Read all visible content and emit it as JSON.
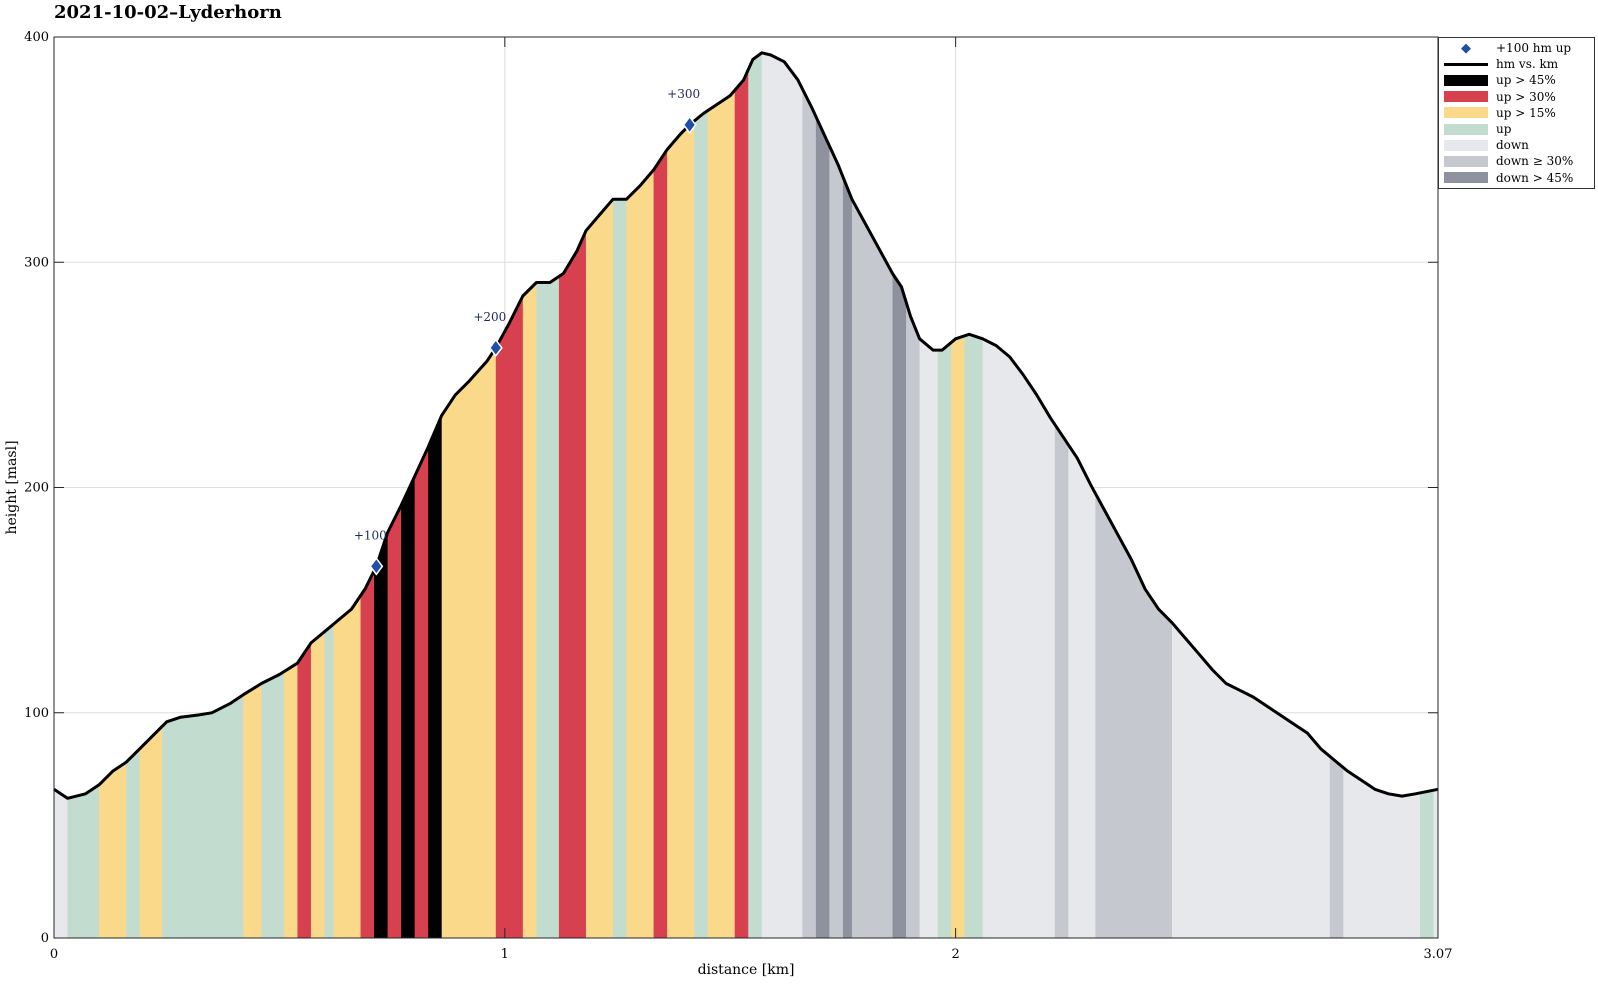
{
  "title": "2021-10-02–Lyderhorn",
  "chart_data": {
    "type": "area",
    "title": "2021-10-02–Lyderhorn",
    "xlabel": "distance [km]",
    "ylabel": "height [masl]",
    "xlim": [
      0,
      3.07
    ],
    "ylim": [
      0,
      400
    ],
    "xticks": [
      {
        "value": 0,
        "label": "0"
      },
      {
        "value": 1,
        "label": "1"
      },
      {
        "value": 2,
        "label": "2"
      },
      {
        "value": 3.07,
        "label": "3.07"
      }
    ],
    "yticks": [
      {
        "value": 0,
        "label": "0"
      },
      {
        "value": 100,
        "label": "100"
      },
      {
        "value": 200,
        "label": "200"
      },
      {
        "value": 300,
        "label": "300"
      },
      {
        "value": 400,
        "label": "400"
      }
    ],
    "grid": true,
    "legend_position": "outside-top-right",
    "categories": {
      "up45": {
        "label": "up > 45%",
        "color": "#000000"
      },
      "up30": {
        "label": "up > 30%",
        "color": "#d7404f"
      },
      "up15": {
        "label": "up > 15%",
        "color": "#fbd98a"
      },
      "up": {
        "label": "up",
        "color": "#c2ddd0"
      },
      "down": {
        "label": "down",
        "color": "#e7e8ec"
      },
      "down30": {
        "label": "down ≥ 30%",
        "color": "#c6c8d0"
      },
      "down45": {
        "label": "down > 45%",
        "color": "#8e919e"
      }
    },
    "profile": [
      [
        0.0,
        66
      ],
      [
        0.03,
        62
      ],
      [
        0.07,
        64
      ],
      [
        0.1,
        68
      ],
      [
        0.13,
        74
      ],
      [
        0.16,
        78
      ],
      [
        0.19,
        84
      ],
      [
        0.22,
        90
      ],
      [
        0.25,
        96
      ],
      [
        0.28,
        98
      ],
      [
        0.32,
        99
      ],
      [
        0.35,
        100
      ],
      [
        0.39,
        104
      ],
      [
        0.42,
        108
      ],
      [
        0.46,
        113
      ],
      [
        0.5,
        117
      ],
      [
        0.54,
        122
      ],
      [
        0.57,
        131
      ],
      [
        0.6,
        136
      ],
      [
        0.63,
        141
      ],
      [
        0.66,
        146
      ],
      [
        0.69,
        155
      ],
      [
        0.715,
        165
      ],
      [
        0.74,
        180
      ],
      [
        0.77,
        192
      ],
      [
        0.8,
        205
      ],
      [
        0.83,
        218
      ],
      [
        0.86,
        232
      ],
      [
        0.89,
        241
      ],
      [
        0.92,
        247
      ],
      [
        0.96,
        256
      ],
      [
        0.98,
        262
      ],
      [
        1.01,
        273
      ],
      [
        1.04,
        285
      ],
      [
        1.07,
        291
      ],
      [
        1.1,
        291
      ],
      [
        1.13,
        295
      ],
      [
        1.16,
        305
      ],
      [
        1.18,
        314
      ],
      [
        1.21,
        321
      ],
      [
        1.24,
        328
      ],
      [
        1.27,
        328
      ],
      [
        1.3,
        334
      ],
      [
        1.33,
        341
      ],
      [
        1.36,
        350
      ],
      [
        1.39,
        357
      ],
      [
        1.41,
        361
      ],
      [
        1.44,
        366
      ],
      [
        1.47,
        370
      ],
      [
        1.5,
        374
      ],
      [
        1.53,
        381
      ],
      [
        1.55,
        390
      ],
      [
        1.57,
        393
      ],
      [
        1.59,
        392
      ],
      [
        1.62,
        389
      ],
      [
        1.65,
        381
      ],
      [
        1.68,
        369
      ],
      [
        1.71,
        356
      ],
      [
        1.74,
        343
      ],
      [
        1.77,
        328
      ],
      [
        1.8,
        317
      ],
      [
        1.83,
        306
      ],
      [
        1.86,
        295
      ],
      [
        1.88,
        289
      ],
      [
        1.9,
        276
      ],
      [
        1.92,
        266
      ],
      [
        1.95,
        261
      ],
      [
        1.97,
        261
      ],
      [
        2.0,
        266
      ],
      [
        2.03,
        268
      ],
      [
        2.06,
        266
      ],
      [
        2.09,
        263
      ],
      [
        2.12,
        258
      ],
      [
        2.15,
        250
      ],
      [
        2.18,
        241
      ],
      [
        2.21,
        231
      ],
      [
        2.24,
        222
      ],
      [
        2.27,
        213
      ],
      [
        2.3,
        201
      ],
      [
        2.33,
        190
      ],
      [
        2.36,
        179
      ],
      [
        2.39,
        168
      ],
      [
        2.42,
        155
      ],
      [
        2.45,
        146
      ],
      [
        2.48,
        140
      ],
      [
        2.51,
        133
      ],
      [
        2.54,
        126
      ],
      [
        2.57,
        119
      ],
      [
        2.6,
        113
      ],
      [
        2.63,
        110
      ],
      [
        2.66,
        107
      ],
      [
        2.69,
        103
      ],
      [
        2.72,
        99
      ],
      [
        2.75,
        95
      ],
      [
        2.78,
        91
      ],
      [
        2.81,
        84
      ],
      [
        2.84,
        79
      ],
      [
        2.87,
        74
      ],
      [
        2.9,
        70
      ],
      [
        2.93,
        66
      ],
      [
        2.96,
        64
      ],
      [
        2.99,
        63
      ],
      [
        3.02,
        64
      ],
      [
        3.07,
        66
      ]
    ],
    "segments": [
      [
        0.0,
        0.03,
        "down"
      ],
      [
        0.03,
        0.1,
        "up"
      ],
      [
        0.1,
        0.16,
        "up15"
      ],
      [
        0.16,
        0.19,
        "up"
      ],
      [
        0.19,
        0.24,
        "up15"
      ],
      [
        0.24,
        0.42,
        "up"
      ],
      [
        0.42,
        0.46,
        "up15"
      ],
      [
        0.46,
        0.51,
        "up"
      ],
      [
        0.51,
        0.54,
        "up15"
      ],
      [
        0.54,
        0.57,
        "up30"
      ],
      [
        0.57,
        0.6,
        "up15"
      ],
      [
        0.6,
        0.62,
        "up"
      ],
      [
        0.62,
        0.68,
        "up15"
      ],
      [
        0.68,
        0.71,
        "up30"
      ],
      [
        0.71,
        0.74,
        "up45"
      ],
      [
        0.74,
        0.77,
        "up30"
      ],
      [
        0.77,
        0.8,
        "up45"
      ],
      [
        0.8,
        0.83,
        "up30"
      ],
      [
        0.83,
        0.86,
        "up45"
      ],
      [
        0.86,
        0.98,
        "up15"
      ],
      [
        0.98,
        1.04,
        "up30"
      ],
      [
        1.04,
        1.07,
        "up15"
      ],
      [
        1.07,
        1.12,
        "up"
      ],
      [
        1.12,
        1.18,
        "up30"
      ],
      [
        1.18,
        1.24,
        "up15"
      ],
      [
        1.24,
        1.27,
        "up"
      ],
      [
        1.27,
        1.33,
        "up15"
      ],
      [
        1.33,
        1.36,
        "up30"
      ],
      [
        1.36,
        1.42,
        "up15"
      ],
      [
        1.42,
        1.45,
        "up"
      ],
      [
        1.45,
        1.51,
        "up15"
      ],
      [
        1.51,
        1.54,
        "up30"
      ],
      [
        1.54,
        1.57,
        "up"
      ],
      [
        1.57,
        1.66,
        "down"
      ],
      [
        1.66,
        1.69,
        "down30"
      ],
      [
        1.69,
        1.72,
        "down45"
      ],
      [
        1.72,
        1.75,
        "down30"
      ],
      [
        1.75,
        1.77,
        "down45"
      ],
      [
        1.77,
        1.86,
        "down30"
      ],
      [
        1.86,
        1.89,
        "down45"
      ],
      [
        1.89,
        1.92,
        "down30"
      ],
      [
        1.92,
        1.96,
        "down"
      ],
      [
        1.96,
        1.99,
        "up"
      ],
      [
        1.99,
        2.02,
        "up15"
      ],
      [
        2.02,
        2.06,
        "up"
      ],
      [
        2.06,
        2.22,
        "down"
      ],
      [
        2.22,
        2.25,
        "down30"
      ],
      [
        2.25,
        2.31,
        "down"
      ],
      [
        2.31,
        2.48,
        "down30"
      ],
      [
        2.48,
        2.83,
        "down"
      ],
      [
        2.83,
        2.86,
        "down30"
      ],
      [
        2.86,
        3.03,
        "down"
      ],
      [
        3.03,
        3.06,
        "up"
      ],
      [
        3.06,
        3.07,
        "down"
      ]
    ],
    "markers": [
      {
        "x": 0.715,
        "y": 165,
        "label": "+100"
      },
      {
        "x": 0.98,
        "y": 262,
        "label": "+200"
      },
      {
        "x": 1.41,
        "y": 361,
        "label": "+300"
      }
    ],
    "legend": [
      {
        "kind": "marker",
        "label": "+100 hm up",
        "color": "#1f4fa8"
      },
      {
        "kind": "line",
        "label": "hm vs. km",
        "color": "#000000"
      },
      {
        "kind": "swatch",
        "label": "up > 45%",
        "color": "#000000"
      },
      {
        "kind": "swatch",
        "label": "up > 30%",
        "color": "#d7404f"
      },
      {
        "kind": "swatch",
        "label": "up > 15%",
        "color": "#fbd98a"
      },
      {
        "kind": "swatch",
        "label": "up",
        "color": "#c2ddd0"
      },
      {
        "kind": "swatch",
        "label": "down",
        "color": "#e7e8ec"
      },
      {
        "kind": "swatch",
        "label": "down ≥ 30%",
        "color": "#c6c8d0"
      },
      {
        "kind": "swatch",
        "label": "down > 45%",
        "color": "#8e919e"
      }
    ]
  }
}
